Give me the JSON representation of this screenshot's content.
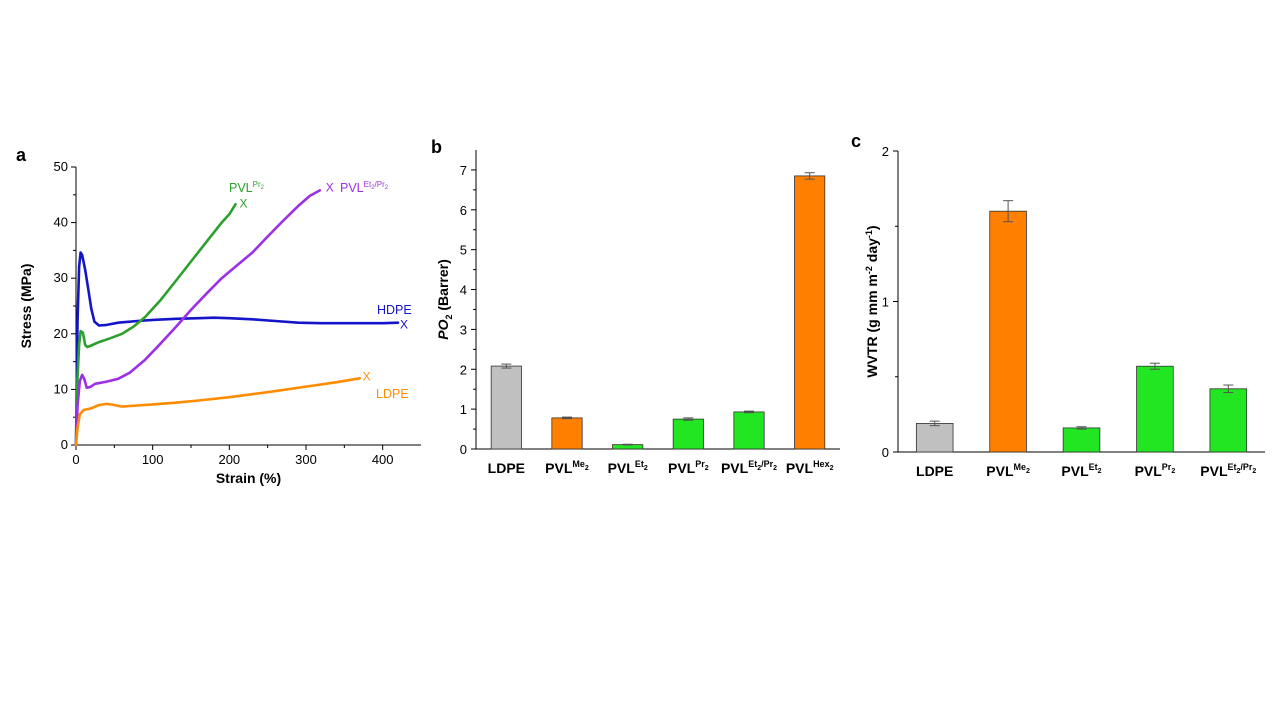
{
  "chart_data": [
    {
      "panel": "a",
      "type": "line",
      "xlabel": "Strain (%)",
      "ylabel": "Stress (MPa)",
      "xlim": [
        0,
        450
      ],
      "ylim": [
        0,
        50
      ],
      "xticks": [
        0,
        100,
        200,
        300,
        400
      ],
      "yticks": [
        0,
        10,
        20,
        30,
        40,
        50
      ],
      "series": [
        {
          "name": "HDPE",
          "color": "#1414c8",
          "break_marker": "X",
          "points": [
            [
              0,
              0
            ],
            [
              2,
              22
            ],
            [
              4,
              32
            ],
            [
              6,
              34.6
            ],
            [
              8,
              34.2
            ],
            [
              12,
              31.5
            ],
            [
              16,
              28
            ],
            [
              20,
              24.5
            ],
            [
              24,
              22.2
            ],
            [
              30,
              21.5
            ],
            [
              40,
              21.6
            ],
            [
              55,
              22
            ],
            [
              80,
              22.3
            ],
            [
              100,
              22.5
            ],
            [
              130,
              22.7
            ],
            [
              160,
              22.8
            ],
            [
              180,
              22.9
            ],
            [
              200,
              22.8
            ],
            [
              230,
              22.6
            ],
            [
              260,
              22.3
            ],
            [
              290,
              22
            ],
            [
              320,
              21.9
            ],
            [
              350,
              21.9
            ],
            [
              380,
              21.9
            ],
            [
              400,
              21.9
            ],
            [
              420,
              22
            ]
          ]
        },
        {
          "name": "PVL",
          "sup": "Pr",
          "sup_sub": "2",
          "color": "#2ca02c",
          "break_marker": "X",
          "points": [
            [
              0,
              0
            ],
            [
              2,
              12
            ],
            [
              4,
              18
            ],
            [
              6,
              20.5
            ],
            [
              9,
              20.2
            ],
            [
              12,
              18
            ],
            [
              15,
              17.6
            ],
            [
              20,
              17.9
            ],
            [
              30,
              18.5
            ],
            [
              45,
              19.2
            ],
            [
              60,
              20
            ],
            [
              75,
              21.3
            ],
            [
              90,
              23
            ],
            [
              110,
              26
            ],
            [
              130,
              29.5
            ],
            [
              150,
              33
            ],
            [
              170,
              36.5
            ],
            [
              190,
              40
            ],
            [
              200,
              41.5
            ],
            [
              208,
              43.3
            ]
          ]
        },
        {
          "name": "PVL",
          "sup": "Et",
          "sup_sub": "2",
          "sup_tail": "/Pr",
          "sup_tail_sub": "2",
          "color": "#9b30e8",
          "break_marker": "X",
          "points": [
            [
              0,
              0
            ],
            [
              2,
              7
            ],
            [
              5,
              11.5
            ],
            [
              8,
              12.6
            ],
            [
              11,
              11.8
            ],
            [
              14,
              10.3
            ],
            [
              18,
              10.4
            ],
            [
              25,
              11
            ],
            [
              40,
              11.4
            ],
            [
              55,
              11.9
            ],
            [
              70,
              13
            ],
            [
              90,
              15.3
            ],
            [
              110,
              18.2
            ],
            [
              130,
              21.2
            ],
            [
              150,
              24.3
            ],
            [
              170,
              27.2
            ],
            [
              190,
              30
            ],
            [
              210,
              32.3
            ],
            [
              230,
              34.6
            ],
            [
              250,
              37.5
            ],
            [
              270,
              40.3
            ],
            [
              290,
              43
            ],
            [
              305,
              44.8
            ],
            [
              318,
              45.8
            ]
          ]
        },
        {
          "name": "LDPE",
          "color": "#ff8c00",
          "break_marker": "X",
          "points": [
            [
              0,
              0
            ],
            [
              2,
              3
            ],
            [
              5,
              5.5
            ],
            [
              10,
              6.3
            ],
            [
              20,
              6.6
            ],
            [
              30,
              7.2
            ],
            [
              40,
              7.4
            ],
            [
              50,
              7.2
            ],
            [
              60,
              6.9
            ],
            [
              80,
              7.1
            ],
            [
              100,
              7.3
            ],
            [
              130,
              7.6
            ],
            [
              160,
              8
            ],
            [
              200,
              8.6
            ],
            [
              250,
              9.5
            ],
            [
              300,
              10.5
            ],
            [
              340,
              11.3
            ],
            [
              370,
              12
            ]
          ]
        }
      ]
    },
    {
      "panel": "b",
      "type": "bar",
      "ylabel_main": "PO",
      "ylabel_sub": "2",
      "ylabel_unit": " (Barrer)",
      "ylim": [
        0,
        7.5
      ],
      "yticks": [
        0,
        1,
        2,
        3,
        4,
        5,
        6,
        7
      ],
      "categories": [
        {
          "base": "LDPE",
          "sup": ""
        },
        {
          "base": "PVL",
          "sup": "Me",
          "sup_sub": "2"
        },
        {
          "base": "PVL",
          "sup": "Et",
          "sup_sub": "2"
        },
        {
          "base": "PVL",
          "sup": "Pr",
          "sup_sub": "2"
        },
        {
          "base": "PVL",
          "sup": "Et",
          "sup_sub": "2",
          "sup_tail": "/Pr",
          "sup_tail_sub": "2"
        },
        {
          "base": "PVL",
          "sup": "Hex",
          "sup_sub": "2"
        }
      ],
      "values": [
        2.08,
        0.78,
        0.11,
        0.75,
        0.93,
        6.85
      ],
      "errors": [
        0.05,
        0.02,
        0.01,
        0.03,
        0.02,
        0.08
      ],
      "colors": [
        "#c0c0c0",
        "#ff8000",
        "#22e622",
        "#22e622",
        "#22e622",
        "#ff8000"
      ]
    },
    {
      "panel": "c",
      "type": "bar",
      "ylabel_pre": "WVTR (g mm m",
      "ylabel_sup1": "-2",
      "ylabel_mid": " day",
      "ylabel_sup2": "-1",
      "ylabel_post": ")",
      "ylim": [
        0,
        2
      ],
      "yticks": [
        0,
        1,
        2
      ],
      "categories": [
        {
          "base": "LDPE",
          "sup": ""
        },
        {
          "base": "PVL",
          "sup": "Me",
          "sup_sub": "2"
        },
        {
          "base": "PVL",
          "sup": "Et",
          "sup_sub": "2"
        },
        {
          "base": "PVL",
          "sup": "Pr",
          "sup_sub": "2"
        },
        {
          "base": "PVL",
          "sup": "Et",
          "sup_sub": "2",
          "sup_tail": "/Pr",
          "sup_tail_sub": "2"
        }
      ],
      "values": [
        0.19,
        1.6,
        0.16,
        0.57,
        0.42
      ],
      "errors": [
        0.015,
        0.07,
        0.008,
        0.02,
        0.025
      ],
      "colors": [
        "#c0c0c0",
        "#ff8000",
        "#22e622",
        "#22e622",
        "#22e622"
      ]
    }
  ]
}
